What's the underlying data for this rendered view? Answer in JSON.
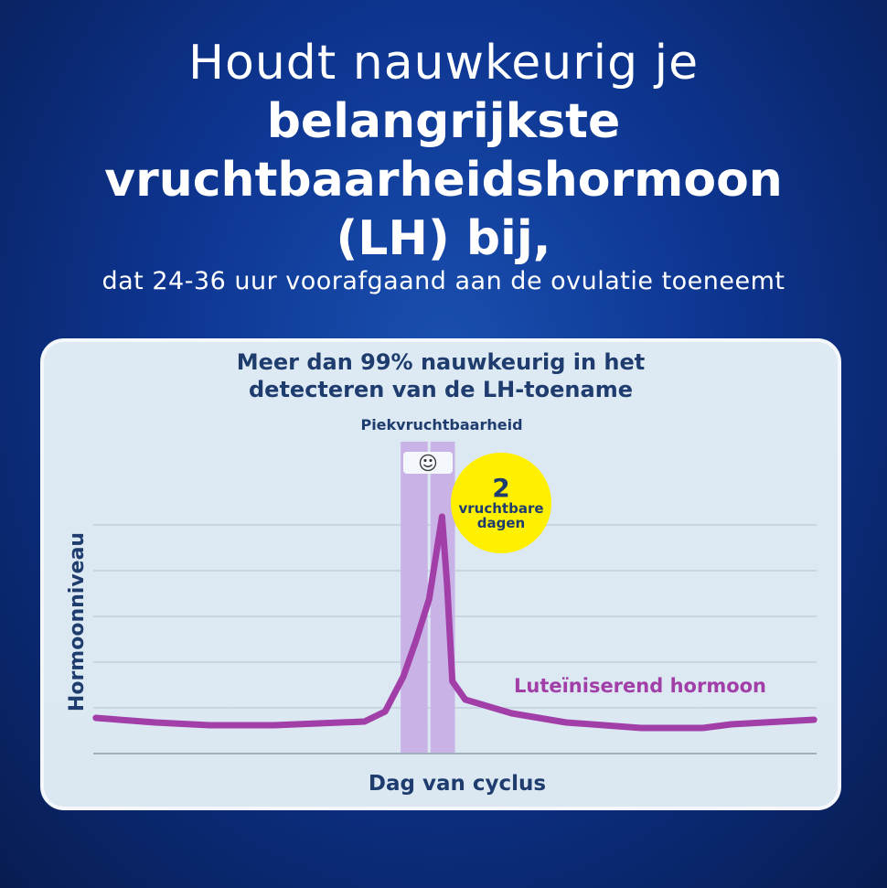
{
  "heading": {
    "line1": "Houdt nauwkeurig je",
    "line2": "belangrijkste",
    "line3": "vruchtbaarheidshormoon",
    "line4": "(LH) bij,",
    "subtitle": "dat 24-36 uur voorafgaand aan de ovulatie toeneemt"
  },
  "card": {
    "title_line1": "Meer dan 99% nauwkeurig in het",
    "title_line2": "detecteren van de LH-toename"
  },
  "chart_data": {
    "type": "line",
    "xlabel": "Dag van cyclus",
    "ylabel": "Hormoonniveau",
    "grid": true,
    "xlim": [
      0,
      28
    ],
    "ylim": [
      0,
      5
    ],
    "series": [
      {
        "name": "Luteïniserend hormoon",
        "color": "#a23ea8",
        "x": [
          0.1,
          2.4,
          4.5,
          7.0,
          10.5,
          11.3,
          12.0,
          12.5,
          13.0,
          13.5,
          13.7,
          13.9,
          14.4,
          16.2,
          18.3,
          21.2,
          23.6,
          24.7,
          27.9
        ],
        "y": [
          0.78,
          0.68,
          0.62,
          0.62,
          0.7,
          0.92,
          1.68,
          2.48,
          3.38,
          5.18,
          3.68,
          1.58,
          1.18,
          0.88,
          0.68,
          0.56,
          0.56,
          0.64,
          0.74
        ]
      }
    ],
    "highlight": {
      "label": "Piekvruchtbaarheid",
      "icon": "smiley-icon",
      "days": [
        [
          11.9,
          13.0
        ],
        [
          13.0,
          14.0
        ]
      ],
      "color": "#c8b2e6"
    },
    "badge": {
      "number": "2",
      "text_line1": "vruchtbare",
      "text_line2": "dagen",
      "color": "#fff000"
    }
  }
}
